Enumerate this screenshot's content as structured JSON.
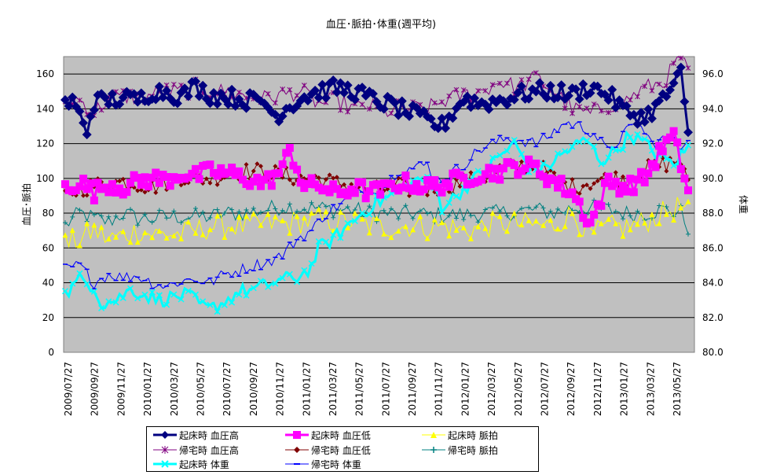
{
  "chart_data": {
    "type": "line",
    "title": "血圧･脈拍･体重(週平均)",
    "ylabel": "血圧･脈拍",
    "y2label": "体重",
    "ylim": [
      0,
      170
    ],
    "y2lim": [
      80,
      97
    ],
    "yticks": [
      "0",
      "20",
      "40",
      "60",
      "80",
      "100",
      "120",
      "140",
      "160"
    ],
    "y2ticks": [
      "80.0",
      "82.0",
      "84.0",
      "86.0",
      "88.0",
      "90.0",
      "92.0",
      "94.0",
      "96.0"
    ],
    "grid": true,
    "legend_position": "bottom",
    "x_labels": [
      "2009/07/27",
      "2009/09/27",
      "2009/11/27",
      "2010/01/27",
      "2010/03/27",
      "2010/05/27",
      "2010/07/27",
      "2010/09/27",
      "2010/11/27",
      "2011/01/27",
      "2011/03/27",
      "2011/05/27",
      "2011/07/27",
      "2011/09/27",
      "2011/11/27",
      "2012/01/27",
      "2012/03/27",
      "2012/05/27",
      "2012/07/27",
      "2012/09/27",
      "2012/11/27",
      "2013/01/27",
      "2013/03/27",
      "2013/05/27"
    ],
    "series_keyframes": {
      "wake_bp_high": [
        [
          0,
          143
        ],
        [
          2,
          144
        ],
        [
          4,
          136
        ],
        [
          6,
          128
        ],
        [
          8,
          144
        ],
        [
          12,
          145
        ],
        [
          16,
          146
        ],
        [
          20,
          145
        ],
        [
          24,
          150
        ],
        [
          28,
          150
        ],
        [
          32,
          147
        ],
        [
          36,
          153
        ],
        [
          40,
          148
        ],
        [
          45,
          147
        ],
        [
          50,
          145
        ],
        [
          55,
          144
        ],
        [
          58,
          136
        ],
        [
          62,
          142
        ],
        [
          66,
          147
        ],
        [
          70,
          150
        ],
        [
          75,
          152
        ],
        [
          80,
          150
        ],
        [
          84,
          146
        ],
        [
          90,
          142
        ],
        [
          95,
          138
        ],
        [
          100,
          133
        ],
        [
          104,
          130
        ],
        [
          110,
          146
        ],
        [
          115,
          143
        ],
        [
          120,
          145
        ],
        [
          125,
          148
        ],
        [
          130,
          150
        ],
        [
          135,
          150
        ],
        [
          140,
          148
        ],
        [
          145,
          153
        ],
        [
          150,
          148
        ],
        [
          155,
          138
        ],
        [
          160,
          135
        ],
        [
          165,
          145
        ],
        [
          170,
          160
        ],
        [
          172,
          124
        ]
      ],
      "wake_bp_low": [
        [
          0,
          95
        ],
        [
          4,
          98
        ],
        [
          8,
          92
        ],
        [
          12,
          97
        ],
        [
          16,
          95
        ],
        [
          20,
          98
        ],
        [
          24,
          100
        ],
        [
          28,
          99
        ],
        [
          32,
          103
        ],
        [
          36,
          101
        ],
        [
          40,
          104
        ],
        [
          45,
          103
        ],
        [
          50,
          100
        ],
        [
          55,
          97
        ],
        [
          60,
          105
        ],
        [
          62,
          117
        ],
        [
          66,
          95
        ],
        [
          70,
          96
        ],
        [
          75,
          91
        ],
        [
          80,
          95
        ],
        [
          84,
          92
        ],
        [
          88,
          93
        ],
        [
          92,
          97
        ],
        [
          96,
          97
        ],
        [
          100,
          95
        ],
        [
          105,
          97
        ],
        [
          110,
          100
        ],
        [
          115,
          103
        ],
        [
          120,
          104
        ],
        [
          125,
          107
        ],
        [
          130,
          106
        ],
        [
          135,
          98
        ],
        [
          140,
          92
        ],
        [
          145,
          74
        ],
        [
          150,
          98
        ],
        [
          155,
          95
        ],
        [
          160,
          100
        ],
        [
          165,
          118
        ],
        [
          168,
          124
        ],
        [
          172,
          93
        ]
      ],
      "wake_pulse": [
        [
          0,
          62
        ],
        [
          4,
          65
        ],
        [
          8,
          70
        ],
        [
          12,
          65
        ],
        [
          16,
          67
        ],
        [
          20,
          70
        ],
        [
          24,
          68
        ],
        [
          28,
          68
        ],
        [
          32,
          68
        ],
        [
          36,
          70
        ],
        [
          40,
          72
        ],
        [
          45,
          73
        ],
        [
          50,
          72
        ],
        [
          55,
          74
        ],
        [
          60,
          74
        ],
        [
          65,
          75
        ],
        [
          70,
          76
        ],
        [
          75,
          75
        ],
        [
          80,
          75
        ],
        [
          84,
          73
        ],
        [
          88,
          72
        ],
        [
          92,
          72
        ],
        [
          96,
          73
        ],
        [
          100,
          72
        ],
        [
          105,
          73
        ],
        [
          110,
          70
        ],
        [
          115,
          72
        ],
        [
          120,
          74
        ],
        [
          125,
          74
        ],
        [
          130,
          73
        ],
        [
          135,
          73
        ],
        [
          140,
          80
        ],
        [
          145,
          67
        ],
        [
          150,
          72
        ],
        [
          155,
          72
        ],
        [
          160,
          75
        ],
        [
          165,
          80
        ],
        [
          170,
          84
        ],
        [
          172,
          80
        ]
      ],
      "home_bp_high": [
        [
          0,
          146
        ],
        [
          4,
          145
        ],
        [
          8,
          138
        ],
        [
          12,
          146
        ],
        [
          16,
          147
        ],
        [
          20,
          147
        ],
        [
          24,
          148
        ],
        [
          28,
          150
        ],
        [
          32,
          150
        ],
        [
          36,
          152
        ],
        [
          40,
          150
        ],
        [
          45,
          150
        ],
        [
          50,
          147
        ],
        [
          55,
          146
        ],
        [
          60,
          148
        ],
        [
          65,
          150
        ],
        [
          70,
          143
        ],
        [
          75,
          145
        ],
        [
          80,
          140
        ],
        [
          84,
          142
        ],
        [
          88,
          138
        ],
        [
          92,
          140
        ],
        [
          96,
          140
        ],
        [
          100,
          140
        ],
        [
          105,
          145
        ],
        [
          110,
          148
        ],
        [
          115,
          150
        ],
        [
          120,
          156
        ],
        [
          125,
          152
        ],
        [
          130,
          158
        ],
        [
          135,
          150
        ],
        [
          140,
          140
        ],
        [
          145,
          137
        ],
        [
          150,
          142
        ],
        [
          155,
          145
        ],
        [
          160,
          152
        ],
        [
          165,
          155
        ],
        [
          170,
          170
        ],
        [
          172,
          160
        ]
      ],
      "home_bp_low": [
        [
          0,
          90
        ],
        [
          4,
          94
        ],
        [
          8,
          96
        ],
        [
          12,
          97
        ],
        [
          16,
          98
        ],
        [
          20,
          97
        ],
        [
          24,
          95
        ],
        [
          28,
          98
        ],
        [
          32,
          101
        ],
        [
          36,
          100
        ],
        [
          40,
          100
        ],
        [
          45,
          103
        ],
        [
          50,
          104
        ],
        [
          55,
          104
        ],
        [
          60,
          102
        ],
        [
          65,
          100
        ],
        [
          70,
          100
        ],
        [
          75,
          97
        ],
        [
          80,
          96
        ],
        [
          84,
          93
        ],
        [
          88,
          94
        ],
        [
          92,
          96
        ],
        [
          96,
          93
        ],
        [
          100,
          94
        ],
        [
          105,
          95
        ],
        [
          110,
          98
        ],
        [
          115,
          100
        ],
        [
          120,
          105
        ],
        [
          125,
          107
        ],
        [
          130,
          108
        ],
        [
          135,
          100
        ],
        [
          140,
          95
        ],
        [
          145,
          98
        ],
        [
          150,
          100
        ],
        [
          155,
          100
        ],
        [
          160,
          105
        ],
        [
          165,
          108
        ],
        [
          170,
          110
        ],
        [
          172,
          95
        ]
      ],
      "home_pulse": [
        [
          0,
          73
        ],
        [
          4,
          80
        ],
        [
          8,
          77
        ],
        [
          12,
          75
        ],
        [
          16,
          80
        ],
        [
          20,
          77
        ],
        [
          24,
          77
        ],
        [
          28,
          78
        ],
        [
          32,
          78
        ],
        [
          36,
          78
        ],
        [
          40,
          78
        ],
        [
          45,
          80
        ],
        [
          50,
          80
        ],
        [
          55,
          82
        ],
        [
          60,
          84
        ],
        [
          65,
          83
        ],
        [
          70,
          83
        ],
        [
          75,
          82
        ],
        [
          80,
          82
        ],
        [
          84,
          80
        ],
        [
          88,
          80
        ],
        [
          92,
          79
        ],
        [
          96,
          80
        ],
        [
          100,
          79
        ],
        [
          105,
          79
        ],
        [
          110,
          79
        ],
        [
          115,
          80
        ],
        [
          120,
          80
        ],
        [
          125,
          81
        ],
        [
          130,
          82
        ],
        [
          135,
          80
        ],
        [
          140,
          83
        ],
        [
          145,
          83
        ],
        [
          150,
          82
        ],
        [
          155,
          80
        ],
        [
          160,
          80
        ],
        [
          165,
          82
        ],
        [
          170,
          80
        ],
        [
          172,
          72
        ]
      ],
      "wake_weight": [
        [
          0,
          83.3
        ],
        [
          4,
          84.2
        ],
        [
          8,
          83.8
        ],
        [
          10,
          82.8
        ],
        [
          14,
          83.0
        ],
        [
          18,
          83.6
        ],
        [
          22,
          83.3
        ],
        [
          26,
          83.0
        ],
        [
          30,
          83.2
        ],
        [
          34,
          83.3
        ],
        [
          38,
          82.6
        ],
        [
          40,
          82.5
        ],
        [
          44,
          82.9
        ],
        [
          48,
          83.5
        ],
        [
          52,
          83.6
        ],
        [
          56,
          83.9
        ],
        [
          60,
          84.2
        ],
        [
          64,
          84.3
        ],
        [
          68,
          84.9
        ],
        [
          70,
          86.0
        ],
        [
          74,
          86.5
        ],
        [
          78,
          87.3
        ],
        [
          82,
          88.0
        ],
        [
          86,
          88.6
        ],
        [
          90,
          89.0
        ],
        [
          94,
          89.5
        ],
        [
          98,
          90.0
        ],
        [
          102,
          89.5
        ],
        [
          104,
          88.4
        ],
        [
          108,
          89.0
        ],
        [
          112,
          89.8
        ],
        [
          116,
          90.5
        ],
        [
          120,
          91.3
        ],
        [
          124,
          92.0
        ],
        [
          128,
          90.7
        ],
        [
          132,
          90.5
        ],
        [
          136,
          91.2
        ],
        [
          140,
          91.8
        ],
        [
          144,
          92.2
        ],
        [
          148,
          91.0
        ],
        [
          152,
          91.6
        ],
        [
          156,
          92.5
        ],
        [
          160,
          92.0
        ],
        [
          164,
          91.3
        ],
        [
          168,
          90.8
        ],
        [
          172,
          91.8
        ]
      ],
      "home_weight": [
        [
          0,
          84.8
        ],
        [
          4,
          85.0
        ],
        [
          8,
          84.0
        ],
        [
          12,
          84.5
        ],
        [
          16,
          84.3
        ],
        [
          20,
          84.4
        ],
        [
          24,
          84.0
        ],
        [
          28,
          83.8
        ],
        [
          32,
          84.1
        ],
        [
          36,
          84.2
        ],
        [
          40,
          84.0
        ],
        [
          44,
          84.5
        ],
        [
          48,
          84.7
        ],
        [
          52,
          85.0
        ],
        [
          56,
          85.2
        ],
        [
          60,
          85.6
        ],
        [
          64,
          86.5
        ],
        [
          68,
          87.0
        ],
        [
          72,
          88.0
        ],
        [
          76,
          88.5
        ],
        [
          80,
          89.0
        ],
        [
          84,
          89.4
        ],
        [
          88,
          89.5
        ],
        [
          92,
          90.5
        ],
        [
          96,
          90.6
        ],
        [
          100,
          90.8
        ],
        [
          102,
          89.8
        ],
        [
          106,
          90.2
        ],
        [
          110,
          90.8
        ],
        [
          114,
          91.6
        ],
        [
          118,
          92.0
        ],
        [
          122,
          92.3
        ],
        [
          126,
          92.2
        ],
        [
          130,
          92.0
        ],
        [
          134,
          92.5
        ],
        [
          138,
          93.2
        ],
        [
          142,
          93.0
        ],
        [
          146,
          92.6
        ],
        [
          150,
          91.5
        ],
        [
          154,
          92.5
        ],
        [
          158,
          93.2
        ],
        [
          162,
          92.0
        ],
        [
          166,
          92.3
        ],
        [
          170,
          91.8
        ],
        [
          172,
          92.5
        ]
      ]
    },
    "series": [
      {
        "name": "起床時 血圧高",
        "key": "wake_bp_high",
        "axis": "left",
        "color": "#000080",
        "marker": "diamond",
        "size": 6,
        "width": 3,
        "jitter": 5
      },
      {
        "name": "起床時 血圧低",
        "key": "wake_bp_low",
        "axis": "left",
        "color": "#FF00FF",
        "marker": "square",
        "size": 5,
        "width": 3,
        "jitter": 5
      },
      {
        "name": "起床時 脈拍",
        "key": "wake_pulse",
        "axis": "left",
        "color": "#FFFF00",
        "marker": "triangle",
        "size": 3.5,
        "width": 1,
        "jitter": 7
      },
      {
        "name": "帰宅時 血圧高",
        "key": "home_bp_high",
        "axis": "left",
        "color": "#800080",
        "marker": "star",
        "size": 3,
        "width": 1,
        "jitter": 5
      },
      {
        "name": "帰宅時 血圧低",
        "key": "home_bp_low",
        "axis": "left",
        "color": "#800000",
        "marker": "diamond",
        "size": 3,
        "width": 1,
        "jitter": 5
      },
      {
        "name": "帰宅時 脈拍",
        "key": "home_pulse",
        "axis": "left",
        "color": "#008080",
        "marker": "plus",
        "size": 3,
        "width": 1,
        "jitter": 5
      },
      {
        "name": "起床時 体重",
        "key": "wake_weight",
        "axis": "right",
        "color": "#00FFFF",
        "marker": "x",
        "size": 3.5,
        "width": 3,
        "jitter": 0.4
      },
      {
        "name": "帰宅時 体重",
        "key": "home_weight",
        "axis": "right",
        "color": "#0000FF",
        "marker": "dash",
        "size": 3,
        "width": 1,
        "jitter": 0.35
      }
    ]
  },
  "legend": {
    "items": [
      {
        "label": "起床時 血圧高"
      },
      {
        "label": "起床時 血圧低"
      },
      {
        "label": "起床時 脈拍"
      },
      {
        "label": "帰宅時 血圧高"
      },
      {
        "label": "帰宅時 血圧低"
      },
      {
        "label": "帰宅時 脈拍"
      },
      {
        "label": "起床時 体重"
      },
      {
        "label": "帰宅時 体重"
      }
    ]
  }
}
